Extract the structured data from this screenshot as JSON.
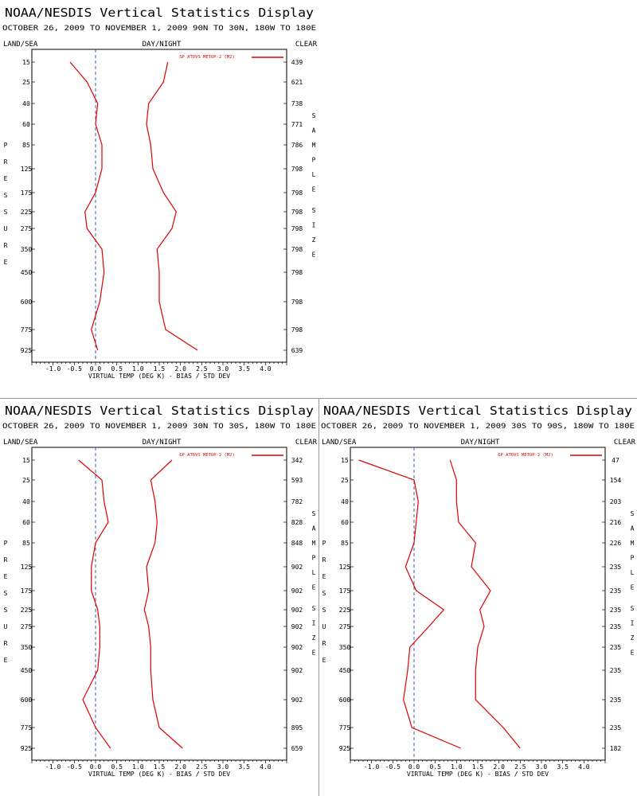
{
  "page": {
    "layout": "2x2 grid, top-right cell empty",
    "main_title": "NOAA/NESDIS Vertical Statistics Display",
    "corner_left": "LAND/SEA",
    "corner_center": "DAY/NIGHT",
    "corner_right": "CLEAR",
    "left_axis_label": "PRESSURE",
    "right_axis_label": "SAMPLE SIZE",
    "xlabel": "VIRTUAL TEMP (DEG K) - BIAS / STD DEV",
    "legend": "SP ATOVS METOP-2 (M2)",
    "colors": {
      "series": "#e00000",
      "zero_line": "#4060a0",
      "text": "#000000"
    }
  },
  "chart_data": [
    {
      "type": "line",
      "subtitle": "OCTOBER 26, 2009 TO NOVEMBER 1, 2009 90N TO 30N, 180W TO 180E",
      "pressure_levels": [
        "15",
        "25",
        "40",
        "60",
        "85",
        "125",
        "175",
        "225",
        "275",
        "350",
        "450",
        "600",
        "775",
        "925"
      ],
      "sample_size": [
        "439",
        "621",
        "738",
        "771",
        "786",
        "798",
        "798",
        "798",
        "798",
        "798",
        "798",
        "798",
        "798",
        "639"
      ],
      "xlim": [
        -1.5,
        4.5
      ],
      "xticks": [
        "-1.0",
        "-0.5",
        "0.0",
        "0.5",
        "1.0",
        "1.5",
        "2.0",
        "2.5",
        "3.0",
        "3.5",
        "4.0"
      ],
      "series": [
        {
          "name": "BIAS",
          "values": [
            -0.6,
            -0.2,
            0.05,
            0.0,
            0.15,
            0.15,
            0.0,
            -0.25,
            -0.2,
            0.15,
            0.2,
            0.1,
            -0.1,
            0.05
          ]
        },
        {
          "name": "STD DEV",
          "values": [
            1.7,
            1.6,
            1.25,
            1.2,
            1.3,
            1.35,
            1.6,
            1.9,
            1.8,
            1.45,
            1.5,
            1.5,
            1.65,
            2.4
          ]
        }
      ]
    },
    {
      "type": "line",
      "subtitle": "OCTOBER 26, 2009 TO NOVEMBER 1, 2009 30N TO 30S, 180W TO 180E",
      "pressure_levels": [
        "15",
        "25",
        "40",
        "60",
        "85",
        "125",
        "175",
        "225",
        "275",
        "350",
        "450",
        "600",
        "775",
        "925"
      ],
      "sample_size": [
        "342",
        "593",
        "782",
        "828",
        "848",
        "902",
        "902",
        "902",
        "902",
        "902",
        "902",
        "902",
        "895",
        "659"
      ],
      "xlim": [
        -1.5,
        4.5
      ],
      "xticks": [
        "-1.0",
        "-0.5",
        "0.0",
        "0.5",
        "1.0",
        "1.5",
        "2.0",
        "2.5",
        "3.0",
        "3.5",
        "4.0"
      ],
      "series": [
        {
          "name": "BIAS",
          "values": [
            -0.4,
            0.15,
            0.2,
            0.3,
            0.0,
            -0.1,
            -0.1,
            0.05,
            0.1,
            0.1,
            0.05,
            -0.3,
            0.0,
            0.35
          ]
        },
        {
          "name": "STD DEV",
          "values": [
            1.8,
            1.3,
            1.4,
            1.45,
            1.4,
            1.2,
            1.25,
            1.15,
            1.25,
            1.3,
            1.3,
            1.35,
            1.5,
            2.05
          ]
        }
      ]
    },
    {
      "type": "line",
      "subtitle": "OCTOBER 26, 2009 TO NOVEMBER 1, 2009 30S TO 90S, 180W TO 180E",
      "pressure_levels": [
        "15",
        "25",
        "40",
        "60",
        "85",
        "125",
        "175",
        "225",
        "275",
        "350",
        "450",
        "600",
        "775",
        "925"
      ],
      "sample_size": [
        "47",
        "154",
        "203",
        "216",
        "226",
        "235",
        "235",
        "235",
        "235",
        "235",
        "235",
        "235",
        "235",
        "182"
      ],
      "xlim": [
        -1.5,
        4.5
      ],
      "xticks": [
        "-1.0",
        "-0.5",
        "0.0",
        "0.5",
        "1.0",
        "1.5",
        "2.0",
        "2.5",
        "3.0",
        "3.5",
        "4.0"
      ],
      "series": [
        {
          "name": "BIAS",
          "values": [
            -1.3,
            0.0,
            0.1,
            0.05,
            0.0,
            -0.2,
            0.05,
            0.7,
            0.35,
            -0.1,
            -0.15,
            -0.25,
            -0.05,
            1.1
          ]
        },
        {
          "name": "STD DEV",
          "values": [
            0.85,
            1.0,
            1.0,
            1.05,
            1.45,
            1.35,
            1.8,
            1.55,
            1.65,
            1.5,
            1.45,
            1.45,
            2.1,
            2.5
          ]
        }
      ]
    }
  ]
}
